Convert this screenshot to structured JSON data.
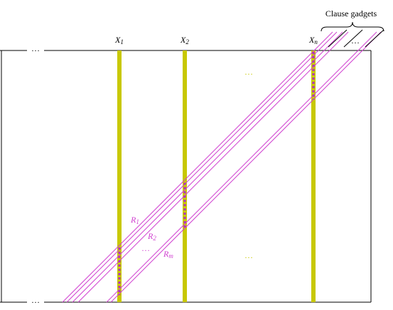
{
  "clause_label": "Clause gadgets",
  "variables": [
    {
      "name": "X",
      "index": "1"
    },
    {
      "name": "X",
      "index": "2"
    },
    {
      "name": "X",
      "index": "n"
    }
  ],
  "routes": [
    {
      "name": "R",
      "index": "1"
    },
    {
      "name": "R",
      "index": "2"
    },
    {
      "name": "R",
      "index": "m"
    }
  ],
  "ellipses": {
    "top_left": "…",
    "bottom_left": "…",
    "variables_top": "…",
    "variables_bottom": "…",
    "routes": "…",
    "clauses": "…"
  }
}
